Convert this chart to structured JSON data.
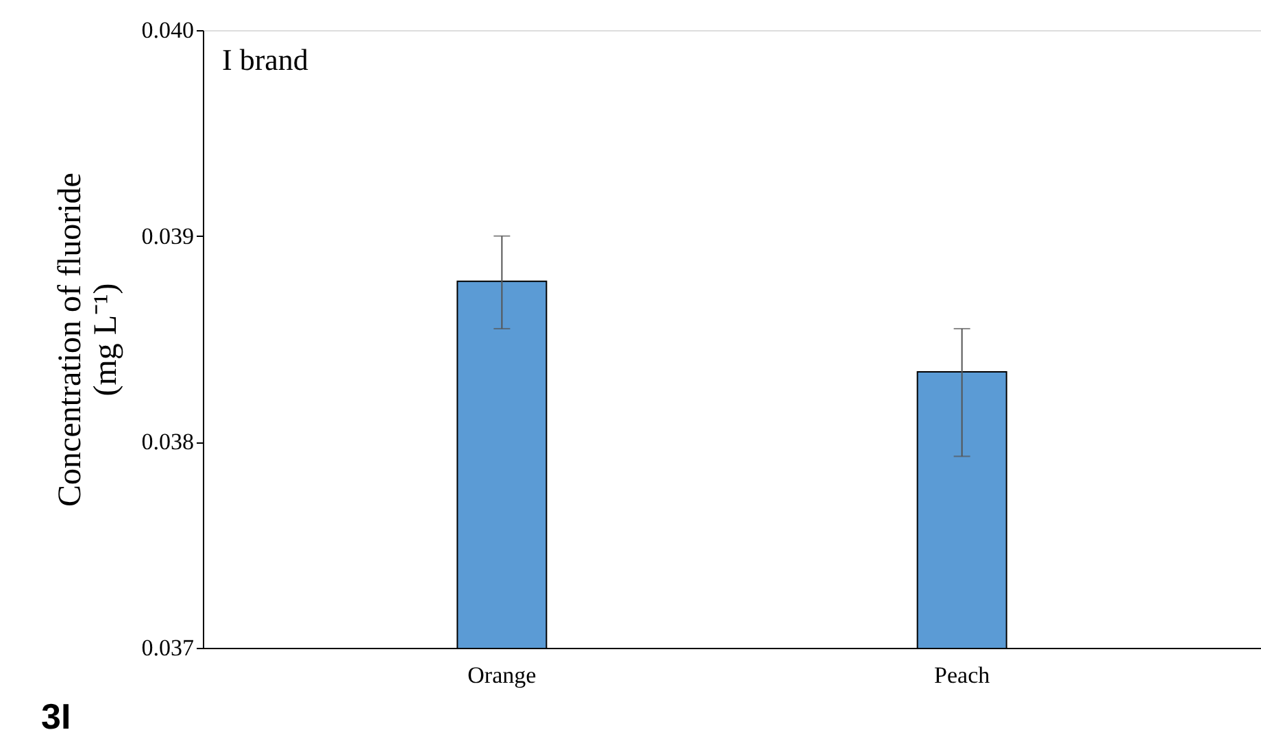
{
  "chart_data": {
    "type": "bar",
    "categories": [
      "Orange",
      "Peach"
    ],
    "values": [
      0.03878,
      0.03834
    ],
    "color": "#5b9bd5",
    "errors": [
      [
        0.03855,
        0.039
      ],
      [
        0.03793,
        0.03855
      ]
    ],
    "ylabel": "Concentration of fluoride\n(mg L⁻¹)",
    "ylim": [
      0.037,
      0.04
    ],
    "yticks": [
      {
        "value": 0.037,
        "label": "0.037"
      },
      {
        "value": 0.038,
        "label": "0.038"
      },
      {
        "value": 0.039,
        "label": "0.039"
      },
      {
        "value": 0.04,
        "label": "0.040"
      }
    ],
    "grid": false,
    "annotations": [
      "I brand",
      "3I"
    ]
  }
}
